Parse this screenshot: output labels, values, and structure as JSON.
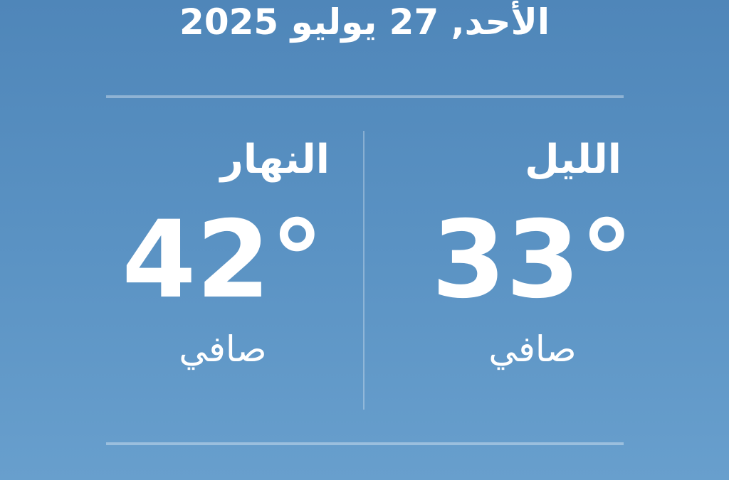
{
  "date": "الأحد, 27 يوليو 2025",
  "day": {
    "label": "النهار",
    "temperature": "42°",
    "condition": "صافي"
  },
  "night": {
    "label": "الليل",
    "temperature": "33°",
    "condition": "صافي"
  }
}
